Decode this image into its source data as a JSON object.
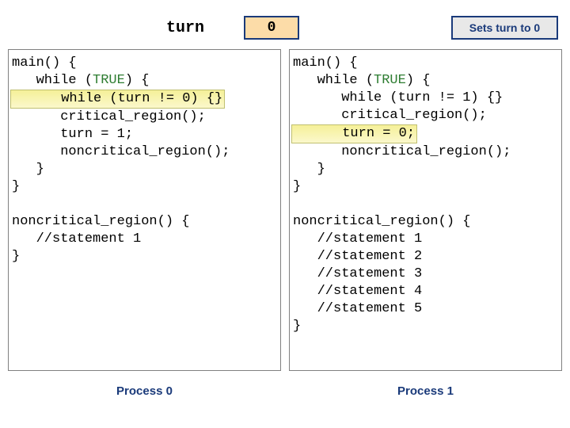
{
  "turn": {
    "label": "turn",
    "value": "0",
    "box_bg": "#fcdca8",
    "box_border": "#1a3a7a"
  },
  "action": {
    "text": "Sets turn to 0",
    "bg": "#e8e8e8",
    "border": "#1a3a7a",
    "color": "#1a3a7a"
  },
  "highlight_color": "#f5f098",
  "keyword_color": "#2e7d32",
  "keywords": {
    "true": "TRUE"
  },
  "left": {
    "label": "Process 0",
    "main": {
      "l1": "main() {",
      "l2a": "   while (",
      "l2b": ") {",
      "l3": "      while (turn != 0) {}",
      "l4": "      critical_region();",
      "l5": "      turn = 1;",
      "l6": "      noncritical_region();",
      "l7": "   }",
      "l8": "}",
      "highlight": "l3"
    },
    "noncrit": {
      "l1": "noncritical_region() {",
      "l2": "   //statement 1",
      "l3": "}"
    }
  },
  "right": {
    "label": "Process 1",
    "main": {
      "l1": "main() {",
      "l2a": "   while (",
      "l2b": ") {",
      "l3": "      while (turn != 1) {}",
      "l4": "      critical_region();",
      "l5": "      turn = 0;",
      "l6": "      noncritical_region();",
      "l7": "   }",
      "l8": "}",
      "highlight": "l5"
    },
    "noncrit": {
      "l1": "noncritical_region() {",
      "l2": "   //statement 1",
      "l3": "   //statement 2",
      "l4": "   //statement 3",
      "l5": "   //statement 4",
      "l6": "   //statement 5",
      "l7": "}"
    }
  }
}
